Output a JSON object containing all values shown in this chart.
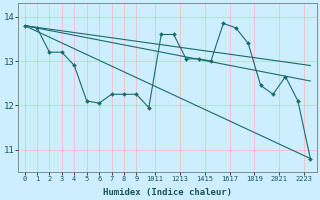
{
  "xlabel": "Humidex (Indice chaleur)",
  "bg_color": "#cceeff",
  "grid_color": "#ffb3b3",
  "line_color": "#1a6b6b",
  "xlim_min": -0.5,
  "xlim_max": 23.5,
  "ylim_min": 10.5,
  "ylim_max": 14.3,
  "yticks": [
    11,
    12,
    13,
    14
  ],
  "xtick_labels": [
    "0",
    "1",
    "2",
    "3",
    "4",
    "5",
    "6",
    "7",
    "8",
    "9",
    "1011",
    "1213",
    "1415",
    "1617",
    "1819",
    "2021",
    "2223"
  ],
  "xtick_positions": [
    0,
    1,
    2,
    3,
    4,
    5,
    6,
    7,
    8,
    9,
    10.5,
    12.5,
    14.5,
    16.5,
    18.5,
    20.5,
    22.5
  ],
  "series": [
    {
      "x": [
        0,
        1,
        2,
        3,
        4,
        5,
        6,
        7,
        8,
        9,
        10,
        11,
        12,
        13,
        14,
        15,
        16,
        17,
        18,
        19,
        20,
        21,
        22,
        23
      ],
      "y": [
        13.8,
        13.75,
        13.2,
        13.2,
        12.9,
        12.1,
        12.05,
        12.25,
        12.25,
        12.25,
        11.95,
        13.6,
        13.6,
        13.05,
        13.05,
        13.0,
        13.85,
        13.75,
        13.4,
        12.45,
        12.25,
        12.65,
        12.1,
        10.8
      ],
      "marker": true
    },
    {
      "x": [
        0,
        23
      ],
      "y": [
        13.8,
        12.9
      ],
      "marker": false
    },
    {
      "x": [
        0,
        23
      ],
      "y": [
        13.8,
        12.55
      ],
      "marker": false
    },
    {
      "x": [
        0,
        23
      ],
      "y": [
        13.8,
        10.8
      ],
      "marker": false
    }
  ]
}
